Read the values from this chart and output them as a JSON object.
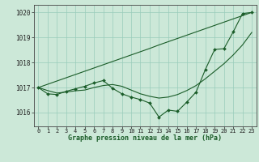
{
  "title": "Graphe pression niveau de la mer (hPa)",
  "background_color": "#cce8d8",
  "grid_color": "#99ccbb",
  "line_color": "#1a5c28",
  "xlim": [
    -0.5,
    23.5
  ],
  "ylim": [
    1015.45,
    1020.3
  ],
  "yticks": [
    1016,
    1017,
    1018,
    1019,
    1020
  ],
  "xticks": [
    0,
    1,
    2,
    3,
    4,
    5,
    6,
    7,
    8,
    9,
    10,
    11,
    12,
    13,
    14,
    15,
    16,
    17,
    18,
    19,
    20,
    21,
    22,
    23
  ],
  "x": [
    0,
    1,
    2,
    3,
    4,
    5,
    6,
    7,
    8,
    9,
    10,
    11,
    12,
    13,
    14,
    15,
    16,
    17,
    18,
    19,
    20,
    21,
    22,
    23
  ],
  "line_straight": [
    1017.0,
    1017.13,
    1017.26,
    1017.39,
    1017.52,
    1017.65,
    1017.78,
    1017.91,
    1018.04,
    1018.17,
    1018.3,
    1018.43,
    1018.56,
    1018.7,
    1018.83,
    1018.96,
    1019.09,
    1019.22,
    1019.35,
    1019.48,
    1019.61,
    1019.74,
    1019.87,
    1020.0
  ],
  "line_smooth": [
    1017.0,
    1016.88,
    1016.78,
    1016.82,
    1016.87,
    1016.9,
    1017.0,
    1017.08,
    1017.12,
    1017.05,
    1016.9,
    1016.75,
    1016.65,
    1016.58,
    1016.62,
    1016.72,
    1016.88,
    1017.08,
    1017.35,
    1017.65,
    1017.95,
    1018.3,
    1018.7,
    1019.2
  ],
  "line_zigzag": [
    1017.0,
    1016.75,
    1016.72,
    1016.85,
    1016.95,
    1017.05,
    1017.18,
    1017.28,
    1016.97,
    1016.75,
    1016.62,
    1016.52,
    1016.38,
    1015.82,
    1016.1,
    1016.05,
    1016.42,
    1016.82,
    1017.72,
    1018.52,
    1018.55,
    1019.22,
    1019.95,
    1020.0
  ],
  "xlabel_fontsize": 6.0,
  "tick_fontsize": 5.0
}
